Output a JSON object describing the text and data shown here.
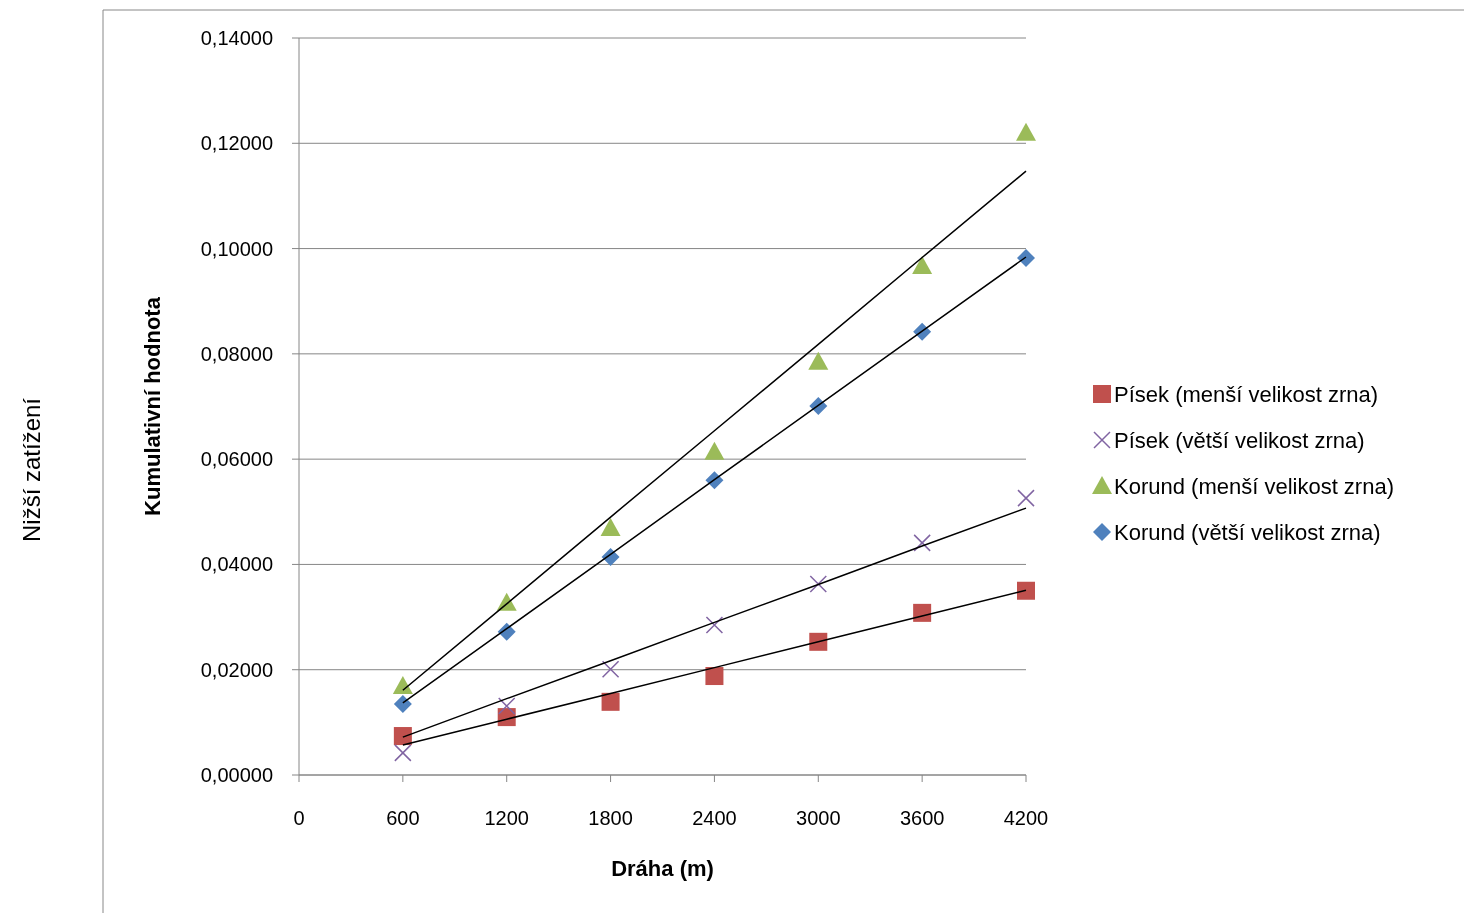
{
  "chart_data": {
    "type": "scatter",
    "xlabel": "Dráha (m)",
    "ylabel": "Kumulativní hodnota",
    "annotations": [
      "Nižší zatížení"
    ],
    "xlim": [
      0,
      4200
    ],
    "xticks": [
      0,
      600,
      1200,
      1800,
      2400,
      3000,
      3600,
      4200
    ],
    "ylim": [
      0,
      0.14
    ],
    "yticks": [
      {
        "value": 0,
        "label": "0,00000"
      },
      {
        "value": 0.02,
        "label": "0,02000"
      },
      {
        "value": 0.04,
        "label": "0,04000"
      },
      {
        "value": 0.06,
        "label": "0,06000"
      },
      {
        "value": 0.08,
        "label": "0,08000"
      },
      {
        "value": 0.1,
        "label": "0,10000"
      },
      {
        "value": 0.12,
        "label": "0,12000"
      },
      {
        "value": 0.14,
        "label": "0,14000"
      }
    ],
    "grid": "y",
    "legend": "right",
    "x": [
      600,
      1200,
      1800,
      2400,
      3000,
      3600,
      4200
    ],
    "series": [
      {
        "name": "Písek (menší velikost zrna)",
        "color": "#c0504d",
        "marker": "square",
        "values": [
          0.0074,
          0.011,
          0.0139,
          0.0188,
          0.0253,
          0.0308,
          0.035
        ]
      },
      {
        "name": "Písek (větší velikost zrna)",
        "color": "#8064a2",
        "marker": "cross",
        "values": [
          0.0042,
          0.0131,
          0.0201,
          0.0285,
          0.0363,
          0.0441,
          0.0526
        ]
      },
      {
        "name": "Korund (menší velikost zrna)",
        "color": "#9bbb59",
        "marker": "triangle",
        "values": [
          0.0169,
          0.0327,
          0.0469,
          0.0614,
          0.0785,
          0.0967,
          0.122
        ]
      },
      {
        "name": "Korund (větší velikost zrna)",
        "color": "#4f81bd",
        "marker": "diamond",
        "values": [
          0.0135,
          0.0272,
          0.0414,
          0.056,
          0.0701,
          0.0842,
          0.0982
        ]
      },
      {
        "type": "line",
        "color": "#000000",
        "marker": "none",
        "values": [
          0.0057,
          0.0106,
          0.0155,
          0.0204,
          0.0253,
          0.0302,
          0.0351
        ]
      },
      {
        "type": "line",
        "color": "#000000",
        "marker": "none",
        "values": [
          0.0072,
          0.0145,
          0.0217,
          0.029,
          0.0362,
          0.0435,
          0.0507
        ]
      },
      {
        "type": "line",
        "color": "#000000",
        "marker": "none",
        "values": [
          0.0161,
          0.0325,
          0.049,
          0.0654,
          0.0818,
          0.0983,
          0.1147
        ]
      },
      {
        "type": "line",
        "color": "#000000",
        "marker": "none",
        "values": [
          0.0137,
          0.0278,
          0.0419,
          0.0561,
          0.0702,
          0.0843,
          0.0984
        ]
      }
    ]
  }
}
